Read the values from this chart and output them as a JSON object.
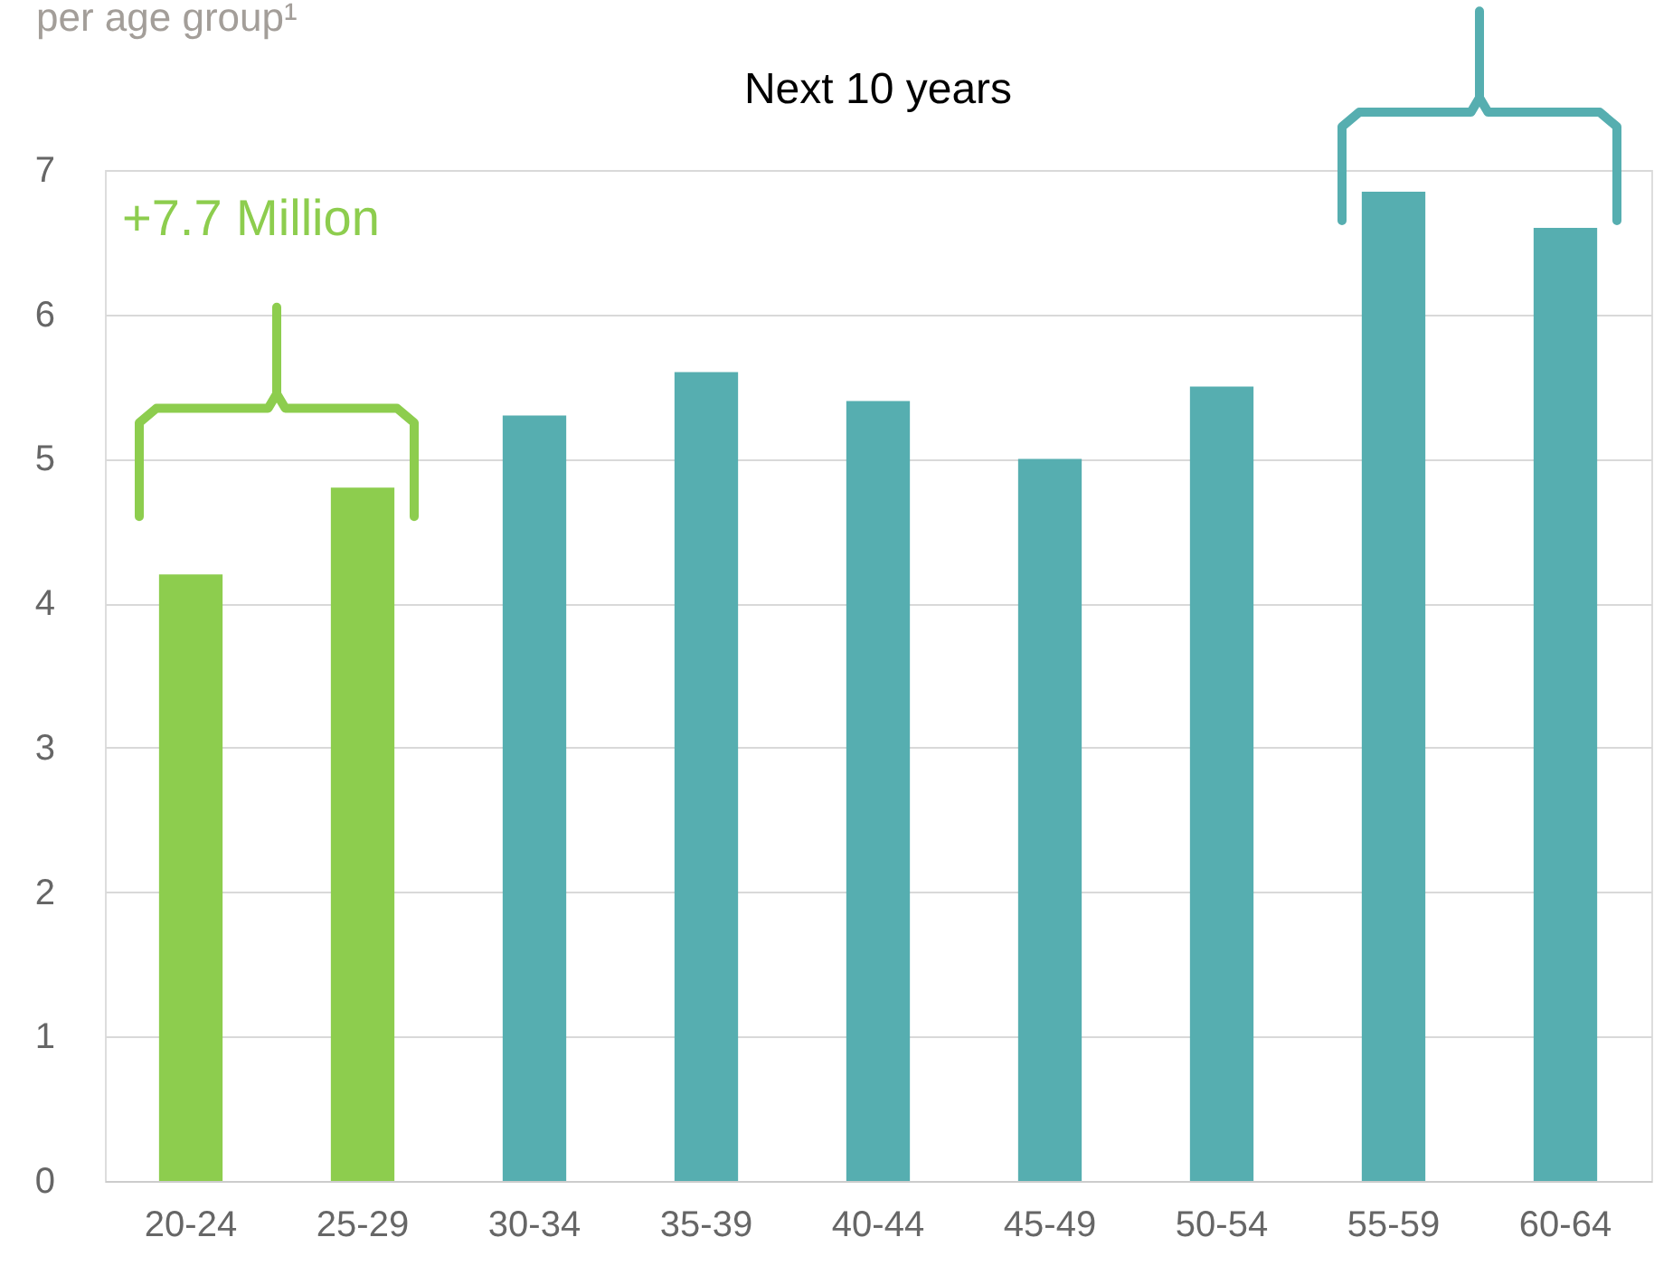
{
  "chart_data": {
    "type": "bar",
    "title": "per age group¹",
    "categories": [
      "20-24",
      "25-29",
      "30-34",
      "35-39",
      "40-44",
      "45-49",
      "50-54",
      "55-59",
      "60-64"
    ],
    "values": [
      4.2,
      4.8,
      5.3,
      5.6,
      5.4,
      5.0,
      5.5,
      6.85,
      6.6
    ],
    "colors": [
      "#8dcd4e",
      "#8dcd4e",
      "#56aeb0",
      "#56aeb0",
      "#56aeb0",
      "#56aeb0",
      "#56aeb0",
      "#56aeb0",
      "#56aeb0"
    ],
    "ylim": [
      0,
      7
    ],
    "yticks": [
      0,
      1,
      2,
      3,
      4,
      5,
      6,
      7
    ],
    "grid": "y",
    "annotations": [
      "+7.7 Million",
      "Next 10 years"
    ]
  }
}
